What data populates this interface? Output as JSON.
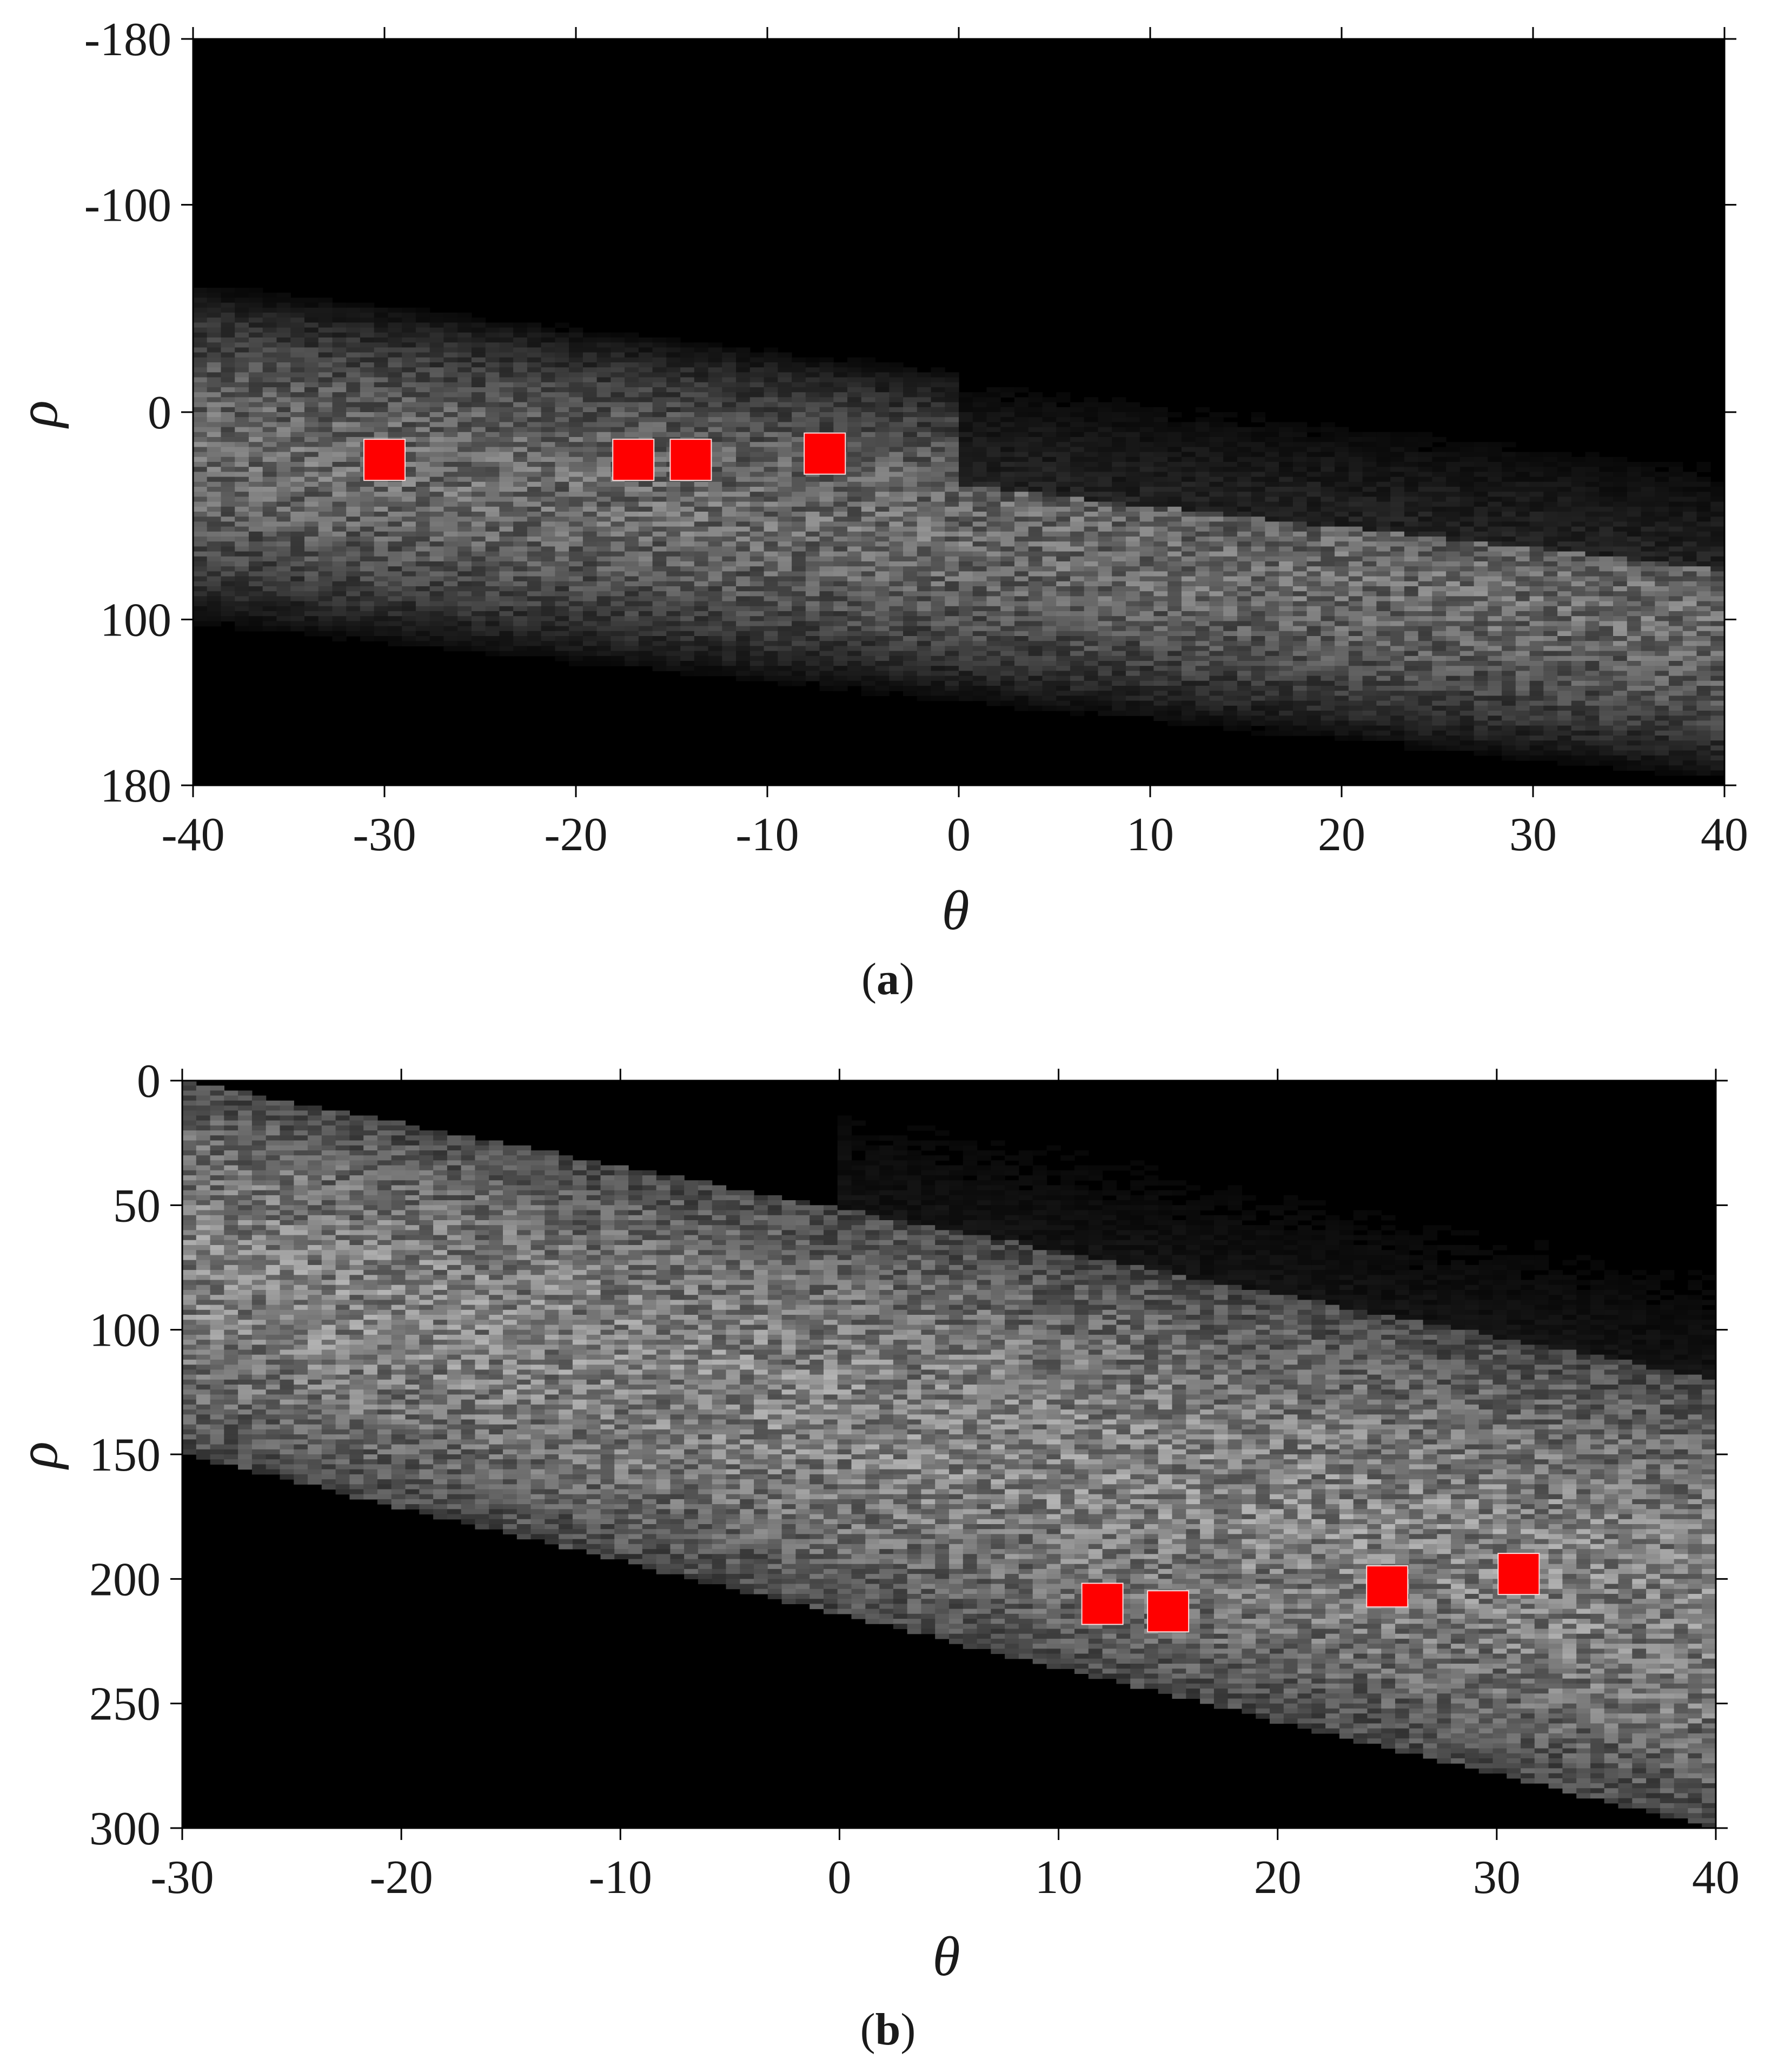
{
  "chart_data": [
    {
      "type": "heatmap",
      "panel": "a",
      "caption_open": "(",
      "caption_letter": "a",
      "caption_close": ")",
      "xlabel": "θ",
      "ylabel": "ρ",
      "xlim": [
        -40,
        40
      ],
      "ylim": [
        -180,
        180
      ],
      "y_reversed": true,
      "xticks": [
        -40,
        -30,
        -20,
        -10,
        0,
        10,
        20,
        30,
        40
      ],
      "yticks": [
        -180,
        -100,
        0,
        100,
        180
      ],
      "colormap": "gray",
      "background": "#000000",
      "band": {
        "description_free": true,
        "center_at_xmin": 20,
        "center_at_xmax": 100,
        "halfwidth_at_xmin": 85,
        "halfwidth_at_xmax": 80,
        "dark_region_above_after_x": 0
      },
      "peak_marker_color": "#ff0000",
      "peaks": [
        {
          "x": -30,
          "y": 23
        },
        {
          "x": -17,
          "y": 23
        },
        {
          "x": -14,
          "y": 23
        },
        {
          "x": -7,
          "y": 20
        }
      ]
    },
    {
      "type": "heatmap",
      "panel": "b",
      "caption_open": "(",
      "caption_letter": "b",
      "caption_close": ")",
      "xlabel": "θ",
      "ylabel": "ρ",
      "xlim": [
        -30,
        40
      ],
      "ylim": [
        0,
        300
      ],
      "y_reversed": true,
      "xticks": [
        -30,
        -20,
        -10,
        0,
        10,
        20,
        30,
        40
      ],
      "yticks": [
        0,
        50,
        100,
        150,
        200,
        250,
        300
      ],
      "colormap": "gray",
      "background": "#000000",
      "band": {
        "upper_edge_at_xmin": 0,
        "upper_edge_at_xmax": 120,
        "lower_edge_at_xmin": 150,
        "lower_edge_at_xmax": 300,
        "dark_region_above_after_x": 0
      },
      "peak_marker_color": "#ff0000",
      "peaks": [
        {
          "x": 12,
          "y": 210
        },
        {
          "x": 15,
          "y": 213
        },
        {
          "x": 25,
          "y": 203
        },
        {
          "x": 31,
          "y": 198
        }
      ]
    }
  ]
}
